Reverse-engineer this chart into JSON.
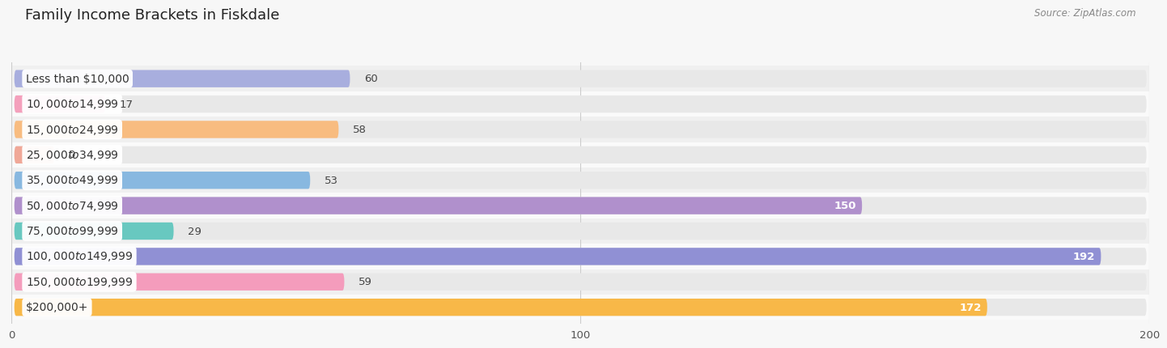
{
  "title": "Family Income Brackets in Fiskdale",
  "source": "Source: ZipAtlas.com",
  "categories": [
    "Less than $10,000",
    "$10,000 to $14,999",
    "$15,000 to $24,999",
    "$25,000 to $34,999",
    "$35,000 to $49,999",
    "$50,000 to $74,999",
    "$75,000 to $99,999",
    "$100,000 to $149,999",
    "$150,000 to $199,999",
    "$200,000+"
  ],
  "values": [
    60,
    17,
    58,
    0,
    53,
    150,
    29,
    192,
    59,
    172
  ],
  "bar_colors": [
    "#a8aede",
    "#f4a0bc",
    "#f8bc80",
    "#f0a898",
    "#88b8e0",
    "#b090cc",
    "#68c8c0",
    "#9090d4",
    "#f49cbc",
    "#f8b848"
  ],
  "xlim": [
    0,
    200
  ],
  "xticks": [
    0,
    100,
    200
  ],
  "background_color": "#f7f7f7",
  "bar_bg_color": "#e8e8e8",
  "row_bg_colors": [
    "#f0f0f0",
    "#fafafa"
  ],
  "title_fontsize": 13,
  "label_fontsize": 10,
  "value_fontsize": 9.5,
  "source_fontsize": 8.5,
  "value_inside_color": "#ffffff",
  "value_outside_color": "#444444",
  "inside_threshold": 100,
  "zero_stub_value": 8
}
